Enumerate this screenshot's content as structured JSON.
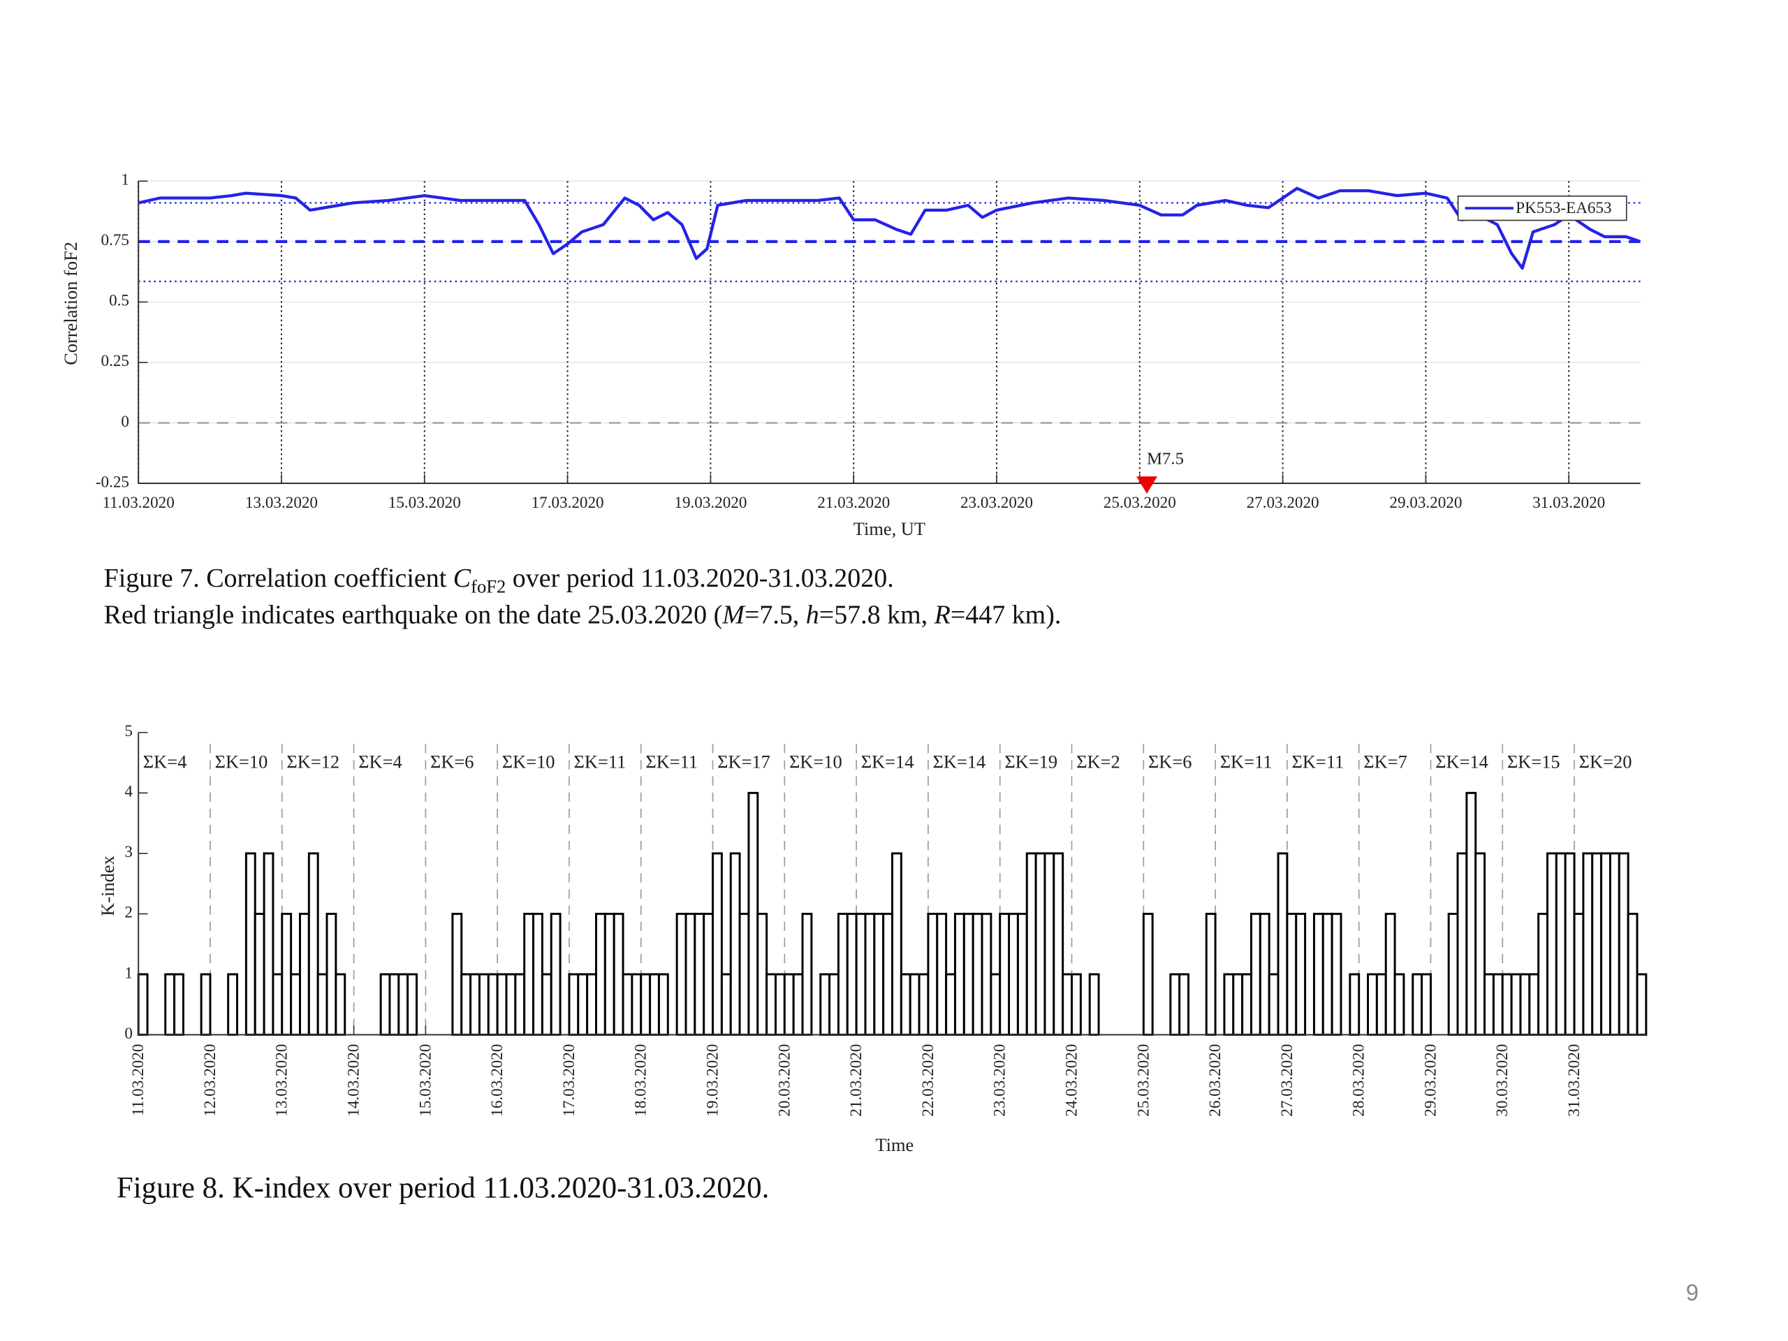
{
  "chart_data": [
    {
      "type": "line",
      "x": [
        0,
        0.3,
        1,
        1.3,
        1.5,
        2,
        2.2,
        2.4,
        3,
        3.5,
        4,
        4.5,
        5,
        5.4,
        5.6,
        5.8,
        6,
        6.2,
        6.5,
        6.8,
        7,
        7.2,
        7.4,
        7.6,
        7.8,
        7.95,
        8.1,
        8.5,
        9,
        9.5,
        9.8,
        10,
        10.3,
        10.6,
        10.8,
        11,
        11.3,
        11.6,
        11.8,
        12,
        12.5,
        13,
        13.5,
        14,
        14.3,
        14.6,
        14.8,
        15.2,
        15.5,
        15.8,
        16,
        16.2,
        16.5,
        16.8,
        17.2,
        17.6,
        18,
        18.3,
        18.5,
        18.8,
        19,
        19.2,
        19.35,
        19.5,
        19.8,
        20,
        20.3,
        20.5,
        20.8,
        21
      ],
      "series": [
        {
          "name": "PK553-EA653",
          "color": "#2323e6",
          "values": [
            0.91,
            0.93,
            0.93,
            0.94,
            0.95,
            0.94,
            0.93,
            0.88,
            0.91,
            0.92,
            0.94,
            0.92,
            0.92,
            0.92,
            0.82,
            0.7,
            0.74,
            0.79,
            0.82,
            0.93,
            0.9,
            0.84,
            0.87,
            0.82,
            0.68,
            0.72,
            0.9,
            0.92,
            0.92,
            0.92,
            0.93,
            0.84,
            0.84,
            0.8,
            0.78,
            0.88,
            0.88,
            0.9,
            0.85,
            0.88,
            0.91,
            0.93,
            0.92,
            0.9,
            0.86,
            0.86,
            0.9,
            0.92,
            0.9,
            0.89,
            0.93,
            0.97,
            0.93,
            0.96,
            0.96,
            0.94,
            0.95,
            0.93,
            0.84,
            0.85,
            0.82,
            0.7,
            0.64,
            0.79,
            0.82,
            0.86,
            0.8,
            0.77,
            0.77,
            0.75
          ]
        }
      ],
      "xlim": [
        0,
        21
      ],
      "xticks": [
        {
          "value": 0,
          "label": "11.03.2020"
        },
        {
          "value": 2,
          "label": "13.03.2020"
        },
        {
          "value": 4,
          "label": "15.03.2020"
        },
        {
          "value": 6,
          "label": "17.03.2020"
        },
        {
          "value": 8,
          "label": "19.03.2020"
        },
        {
          "value": 10,
          "label": "21.03.2020"
        },
        {
          "value": 12,
          "label": "23.03.2020"
        },
        {
          "value": 14,
          "label": "25.03.2020"
        },
        {
          "value": 16,
          "label": "27.03.2020"
        },
        {
          "value": 18,
          "label": "29.03.2020"
        },
        {
          "value": 20,
          "label": "31.03.2020"
        }
      ],
      "ylim": [
        -0.25,
        1
      ],
      "yticks": [
        -0.25,
        0,
        0.25,
        0.5,
        0.75,
        1
      ],
      "ylabel": "Correlation foF2",
      "xlabel": "Time, UT",
      "reference_lines": [
        {
          "value": 0.91,
          "style": "dotted",
          "color": "#2323e6"
        },
        {
          "value": 0.75,
          "style": "dashed",
          "color": "#2323e6"
        },
        {
          "value": 0.585,
          "style": "dotted",
          "color": "#2323e6"
        },
        {
          "value": 0,
          "style": "dashed",
          "color": "#999999"
        }
      ],
      "annotation": {
        "text": "M7.5",
        "x": 14.1,
        "color": "#ee0000"
      },
      "legend": "upper right",
      "grid": true
    },
    {
      "type": "step",
      "days": [
        {
          "label": "ΣK=4",
          "values": [
            1,
            0,
            0,
            1,
            1,
            0,
            0,
            1
          ]
        },
        {
          "label": "ΣK=10",
          "values": [
            0,
            0,
            1,
            0,
            3,
            2,
            3,
            1
          ]
        },
        {
          "label": "ΣK=12",
          "values": [
            2,
            1,
            2,
            3,
            1,
            2,
            1,
            0
          ]
        },
        {
          "label": "ΣK=4",
          "values": [
            0,
            0,
            0,
            1,
            1,
            1,
            1,
            0
          ]
        },
        {
          "label": "ΣK=6",
          "values": [
            0,
            0,
            0,
            2,
            1,
            1,
            1,
            1
          ]
        },
        {
          "label": "ΣK=10",
          "values": [
            1,
            1,
            1,
            2,
            2,
            1,
            2,
            0
          ]
        },
        {
          "label": "ΣK=11",
          "values": [
            1,
            1,
            1,
            2,
            2,
            2,
            1,
            1
          ]
        },
        {
          "label": "ΣK=11",
          "values": [
            1,
            1,
            1,
            0,
            2,
            2,
            2,
            2
          ]
        },
        {
          "label": "ΣK=17",
          "values": [
            3,
            1,
            3,
            2,
            4,
            2,
            1,
            1
          ]
        },
        {
          "label": "ΣK=10",
          "values": [
            1,
            1,
            2,
            0,
            1,
            1,
            2,
            2
          ]
        },
        {
          "label": "ΣK=14",
          "values": [
            2,
            2,
            2,
            2,
            3,
            1,
            1,
            1
          ]
        },
        {
          "label": "ΣK=14",
          "values": [
            2,
            2,
            1,
            2,
            2,
            2,
            2,
            1
          ]
        },
        {
          "label": "ΣK=19",
          "values": [
            2,
            2,
            2,
            3,
            3,
            3,
            3,
            1
          ]
        },
        {
          "label": "ΣK=2",
          "values": [
            1,
            0,
            1,
            0,
            0,
            0,
            0,
            0
          ]
        },
        {
          "label": "ΣK=6",
          "values": [
            2,
            0,
            0,
            1,
            1,
            0,
            0,
            2
          ]
        },
        {
          "label": "ΣK=11",
          "values": [
            0,
            1,
            1,
            1,
            2,
            2,
            1,
            3
          ]
        },
        {
          "label": "ΣK=11",
          "values": [
            2,
            2,
            0,
            2,
            2,
            2,
            0,
            1
          ]
        },
        {
          "label": "ΣK=7",
          "values": [
            0,
            1,
            1,
            2,
            1,
            0,
            1,
            1
          ]
        },
        {
          "label": "ΣK=14",
          "values": [
            0,
            0,
            2,
            3,
            4,
            3,
            1,
            1
          ]
        },
        {
          "label": "ΣK=15",
          "values": [
            1,
            1,
            1,
            1,
            2,
            3,
            3,
            3
          ]
        },
        {
          "label": "ΣK=20",
          "values": [
            2,
            3,
            3,
            3,
            3,
            3,
            2,
            1
          ]
        }
      ],
      "xlim": [
        0,
        21
      ],
      "xticks": [
        {
          "value": 0,
          "label": "11.03.2020"
        },
        {
          "value": 1,
          "label": "12.03.2020"
        },
        {
          "value": 2,
          "label": "13.03.2020"
        },
        {
          "value": 3,
          "label": "14.03.2020"
        },
        {
          "value": 4,
          "label": "15.03.2020"
        },
        {
          "value": 5,
          "label": "16.03.2020"
        },
        {
          "value": 6,
          "label": "17.03.2020"
        },
        {
          "value": 7,
          "label": "18.03.2020"
        },
        {
          "value": 8,
          "label": "19.03.2020"
        },
        {
          "value": 9,
          "label": "20.03.2020"
        },
        {
          "value": 10,
          "label": "21.03.2020"
        },
        {
          "value": 11,
          "label": "22.03.2020"
        },
        {
          "value": 12,
          "label": "23.03.2020"
        },
        {
          "value": 13,
          "label": "24.03.2020"
        },
        {
          "value": 14,
          "label": "25.03.2020"
        },
        {
          "value": 15,
          "label": "26.03.2020"
        },
        {
          "value": 16,
          "label": "27.03.2020"
        },
        {
          "value": 17,
          "label": "28.03.2020"
        },
        {
          "value": 18,
          "label": "29.03.2020"
        },
        {
          "value": 19,
          "label": "30.03.2020"
        },
        {
          "value": 20,
          "label": "31.03.2020"
        }
      ],
      "ylim": [
        0,
        5
      ],
      "yticks": [
        0,
        1,
        2,
        3,
        4,
        5
      ],
      "ylabel": "K-index",
      "xlabel": "Time",
      "color": "#000000",
      "grid": true
    }
  ],
  "captions": [
    [
      [
        {
          "text": "Figure 7. Correlation coefficient "
        },
        {
          "text": "C",
          "style": "italic"
        },
        {
          "text": "foF2",
          "style": "sub"
        },
        {
          "text": " over period 11.03.2020-31.03.2020."
        }
      ],
      [
        {
          "text": "Red triangle indicates earthquake on the date 25.03.2020 ("
        },
        {
          "text": "M",
          "style": "italic"
        },
        {
          "text": "=7.5, "
        },
        {
          "text": "h",
          "style": "italic"
        },
        {
          "text": "=57.8 km, "
        },
        {
          "text": "R",
          "style": "italic"
        },
        {
          "text": "=447 km)."
        }
      ]
    ],
    [
      [
        {
          "text": "Figure 8. K-index over period 11.03.2020-31.03.2020."
        }
      ]
    ]
  ],
  "page_number": "9"
}
